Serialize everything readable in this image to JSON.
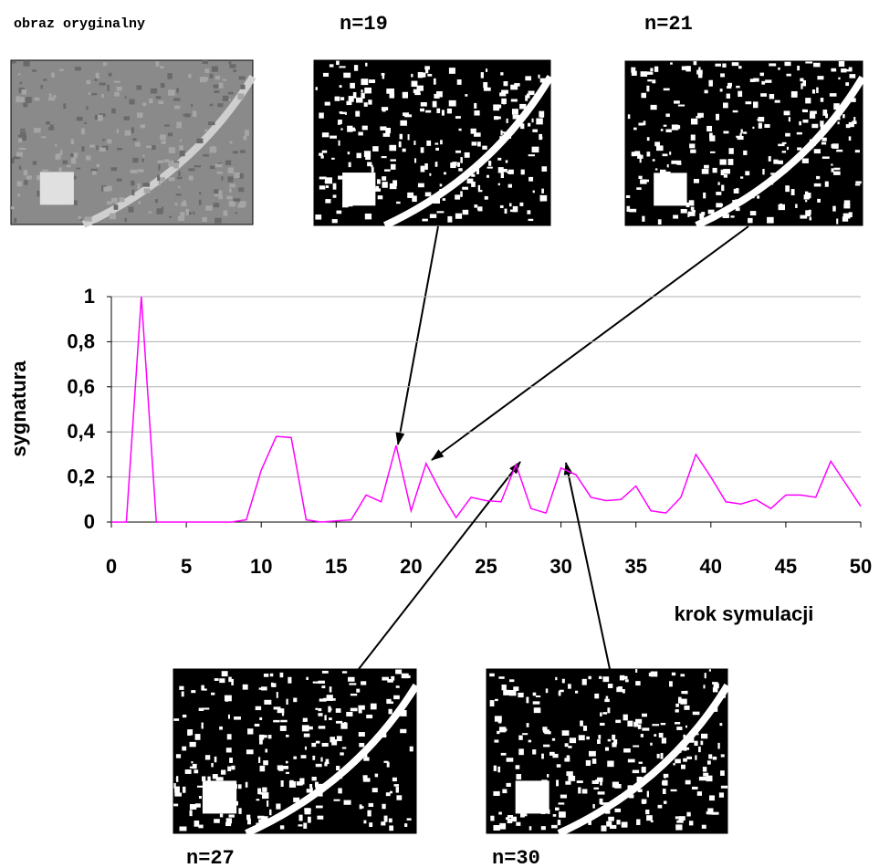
{
  "chart_data": {
    "type": "line",
    "xlabel": "krok symulacji",
    "ylabel": "sygnatura",
    "x": [
      0,
      1,
      2,
      3,
      4,
      5,
      6,
      7,
      8,
      9,
      10,
      11,
      12,
      13,
      14,
      15,
      16,
      17,
      18,
      19,
      20,
      21,
      22,
      23,
      24,
      25,
      26,
      27,
      28,
      29,
      30,
      31,
      32,
      33,
      34,
      35,
      36,
      37,
      38,
      39,
      40,
      41,
      42,
      43,
      44,
      45,
      46,
      47,
      48,
      49,
      50
    ],
    "series": [
      {
        "color": "#ff00ff",
        "values": [
          0,
          0,
          1.0,
          0,
          0,
          0,
          0,
          0,
          0,
          0.01,
          0.23,
          0.38,
          0.375,
          0.01,
          0,
          0.005,
          0.01,
          0.12,
          0.09,
          0.34,
          0.05,
          0.26,
          0.13,
          0.02,
          0.11,
          0.095,
          0.09,
          0.255,
          0.06,
          0.04,
          0.24,
          0.21,
          0.11,
          0.095,
          0.1,
          0.16,
          0.05,
          0.04,
          0.11,
          0.3,
          0.2,
          0.09,
          0.08,
          0.1,
          0.06,
          0.12,
          0.12,
          0.11,
          0.27,
          0.17,
          0.07
        ]
      }
    ],
    "xlim": [
      0,
      50
    ],
    "xticks": [
      0,
      5,
      10,
      15,
      20,
      25,
      30,
      35,
      40,
      45,
      50
    ],
    "ylim": [
      0,
      1
    ],
    "yticks": [
      0,
      {
        "value": 0.2,
        "label": "0,2"
      },
      {
        "value": 0.4,
        "label": "0,4"
      },
      {
        "value": 0.6,
        "label": "0,6"
      },
      {
        "value": 0.8,
        "label": "0,8"
      },
      1
    ],
    "grid": true
  },
  "panels": [
    {
      "label": "obraz oryginalny"
    },
    {
      "label": "n=19"
    },
    {
      "label": "n=21"
    },
    {
      "label": "n=27"
    },
    {
      "label": "n=30"
    }
  ]
}
